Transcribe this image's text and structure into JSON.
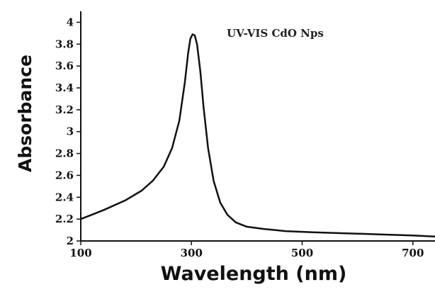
{
  "chart_data": {
    "type": "line",
    "title": "",
    "annotation": "UV-VIS CdO Nps",
    "xlabel": "Wavelength (nm)",
    "ylabel": "Absorbance",
    "xlim": [
      100,
      740
    ],
    "ylim": [
      2,
      4.1
    ],
    "x_ticks": [
      100,
      300,
      500,
      700
    ],
    "x_tick_labels": [
      "100",
      "300",
      "500",
      "700"
    ],
    "y_ticks": [
      2,
      2.2,
      2.4,
      2.6,
      2.8,
      3,
      3.2,
      3.4,
      3.6,
      3.8,
      4
    ],
    "y_tick_labels": [
      "2",
      "2.2",
      "2.4",
      "2.6",
      "2.8",
      "3",
      "3.2",
      "3.4",
      "3.6",
      "3.8",
      "4"
    ],
    "grid": false,
    "series": [
      {
        "color": "#111111",
        "x": [
          100,
          140,
          180,
          210,
          230,
          250,
          265,
          278,
          288,
          294,
          298,
          302,
          306,
          310,
          316,
          322,
          330,
          340,
          352,
          365,
          380,
          400,
          430,
          470,
          520,
          580,
          640,
          700,
          740
        ],
        "y": [
          2.2,
          2.28,
          2.37,
          2.46,
          2.55,
          2.68,
          2.85,
          3.1,
          3.45,
          3.72,
          3.85,
          3.89,
          3.88,
          3.8,
          3.55,
          3.22,
          2.85,
          2.55,
          2.35,
          2.24,
          2.17,
          2.13,
          2.11,
          2.09,
          2.08,
          2.07,
          2.06,
          2.05,
          2.04
        ]
      }
    ]
  }
}
